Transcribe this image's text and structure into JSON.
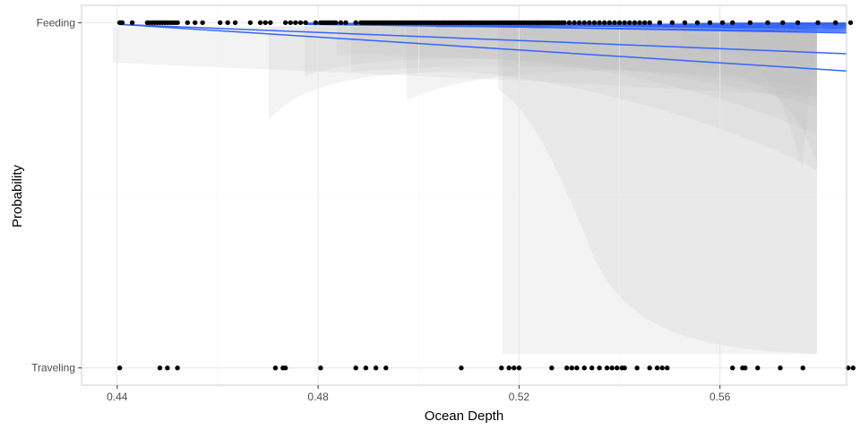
{
  "chart_data": {
    "type": "scatter",
    "title": "",
    "xlabel": "Ocean Depth",
    "ylabel": "Probability",
    "xlim": [
      0.4329,
      0.5852
    ],
    "ylim": [
      -0.05,
      1.05
    ],
    "x_ticks": [
      0.44,
      0.48,
      0.52,
      0.56
    ],
    "x_tick_labels": [
      "0.44",
      "0.48",
      "0.52",
      "0.56"
    ],
    "y_categories": [
      "Traveling",
      "Feeding"
    ],
    "y_category_values": [
      0,
      1
    ],
    "grid": true,
    "background": "white with light grey border",
    "series": [
      {
        "type": "points",
        "color": "#000000",
        "category": "Feeding",
        "x": [
          0.4405,
          0.4408,
          0.441,
          0.443,
          0.446,
          0.4465,
          0.447,
          0.4475,
          0.448,
          0.4485,
          0.449,
          0.4495,
          0.45,
          0.4505,
          0.451,
          0.4515,
          0.452,
          0.454,
          0.4555,
          0.457,
          0.4605,
          0.462,
          0.4635,
          0.4665,
          0.4685,
          0.4695,
          0.4705,
          0.4735,
          0.4745,
          0.4755,
          0.4765,
          0.4775,
          0.4795,
          0.4805,
          0.481,
          0.4815,
          0.482,
          0.4825,
          0.483,
          0.4835,
          0.4845,
          0.4855,
          0.4875,
          0.4885,
          0.489,
          0.4895,
          0.49,
          0.4905,
          0.491,
          0.4915,
          0.492,
          0.4925,
          0.493,
          0.4935,
          0.494,
          0.4945,
          0.495,
          0.4955,
          0.496,
          0.4965,
          0.497,
          0.4975,
          0.498,
          0.4985,
          0.499,
          0.4995,
          0.5,
          0.5005,
          0.501,
          0.5015,
          0.502,
          0.5025,
          0.503,
          0.5035,
          0.504,
          0.5045,
          0.505,
          0.5055,
          0.506,
          0.5065,
          0.507,
          0.5075,
          0.508,
          0.5085,
          0.509,
          0.5095,
          0.51,
          0.5105,
          0.511,
          0.5115,
          0.512,
          0.5125,
          0.513,
          0.5135,
          0.514,
          0.5145,
          0.515,
          0.5155,
          0.516,
          0.5165,
          0.517,
          0.5175,
          0.518,
          0.5185,
          0.519,
          0.5195,
          0.52,
          0.5205,
          0.521,
          0.5215,
          0.522,
          0.5225,
          0.523,
          0.5235,
          0.524,
          0.5245,
          0.525,
          0.5255,
          0.526,
          0.5265,
          0.527,
          0.5275,
          0.528,
          0.5285,
          0.529,
          0.53,
          0.531,
          0.532,
          0.533,
          0.534,
          0.535,
          0.536,
          0.537,
          0.538,
          0.539,
          0.54,
          0.541,
          0.542,
          0.543,
          0.544,
          0.545,
          0.546,
          0.548,
          0.5505,
          0.553,
          0.5555,
          0.558,
          0.5605,
          0.5625,
          0.566,
          0.5695,
          0.5725,
          0.5755,
          0.5795,
          0.583,
          0.586
        ]
      },
      {
        "type": "points",
        "color": "#000000",
        "category": "Traveling",
        "x": [
          0.4405,
          0.4485,
          0.45,
          0.452,
          0.4715,
          0.473,
          0.4735,
          0.4805,
          0.4875,
          0.4895,
          0.4915,
          0.4935,
          0.5085,
          0.5165,
          0.518,
          0.519,
          0.52,
          0.5265,
          0.5295,
          0.5305,
          0.5315,
          0.533,
          0.5345,
          0.536,
          0.5375,
          0.5385,
          0.5395,
          0.5405,
          0.541,
          0.5435,
          0.546,
          0.5475,
          0.5485,
          0.5495,
          0.5625,
          0.5645,
          0.565,
          0.5675,
          0.572,
          0.5765,
          0.5855,
          0.5865
        ]
      },
      {
        "type": "fitted-lines",
        "color": "#3366ff",
        "ribbon_color": "#d9d9d9",
        "lines": [
          {
            "x": [
              0.4405,
              0.5852
            ],
            "y": [
              0.995,
              0.91
            ]
          },
          {
            "x": [
              0.4405,
              0.5852
            ],
            "y": [
              0.995,
              0.86
            ]
          },
          {
            "x": [
              0.4735,
              0.5852
            ],
            "y": [
              1.0,
              0.97
            ]
          },
          {
            "x": [
              0.4775,
              0.5852
            ],
            "y": [
              0.995,
              0.975
            ]
          },
          {
            "x": [
              0.481,
              0.5852
            ],
            "y": [
              0.998,
              0.985
            ]
          },
          {
            "x": [
              0.4835,
              0.5852
            ],
            "y": [
              0.996,
              0.99
            ]
          },
          {
            "x": [
              0.49,
              0.5852
            ],
            "y": [
              0.996,
              0.985
            ]
          },
          {
            "x": [
              0.4935,
              0.5852
            ],
            "y": [
              0.998,
              0.98
            ]
          },
          {
            "x": [
              0.5,
              0.5852
            ],
            "y": [
              0.995,
              0.992
            ]
          },
          {
            "x": [
              0.5035,
              0.5852
            ],
            "y": [
              0.989,
              0.993
            ]
          },
          {
            "x": [
              0.5085,
              0.5852
            ],
            "y": [
              1.0,
              0.99
            ]
          },
          {
            "x": [
              0.5125,
              0.5852
            ],
            "y": [
              0.999,
              0.985
            ]
          },
          {
            "x": [
              0.5165,
              0.5852
            ],
            "y": [
              0.997,
              0.99
            ]
          },
          {
            "x": [
              0.5225,
              0.5852
            ],
            "y": [
              0.993,
              0.992
            ]
          },
          {
            "x": [
              0.531,
              0.5852
            ],
            "y": [
              0.992,
              0.995
            ]
          },
          {
            "x": [
              0.5395,
              0.5852
            ],
            "y": [
              0.994,
              0.995
            ]
          },
          {
            "x": [
              0.5485,
              0.5852
            ],
            "y": [
              0.995,
              0.999
            ]
          },
          {
            "x": [
              0.5505,
              0.5852
            ],
            "y": [
              0.991,
              0.993
            ]
          },
          {
            "x": [
              0.5555,
              0.5852
            ],
            "y": [
              0.997,
              0.999
            ]
          },
          {
            "x": [
              0.5625,
              0.5852
            ],
            "y": [
              0.994,
              0.994
            ]
          },
          {
            "x": [
              0.5625,
              0.5852
            ],
            "y": [
              0.998,
              0.999
            ]
          },
          {
            "x": [
              0.5695,
              0.5852
            ],
            "y": [
              0.995,
              0.996
            ]
          },
          {
            "x": [
              0.5725,
              0.5852
            ],
            "y": [
              0.994,
              0.995
            ]
          },
          {
            "x": [
              0.5795,
              0.5852
            ],
            "y": [
              0.997,
              0.995
            ]
          }
        ]
      }
    ]
  }
}
